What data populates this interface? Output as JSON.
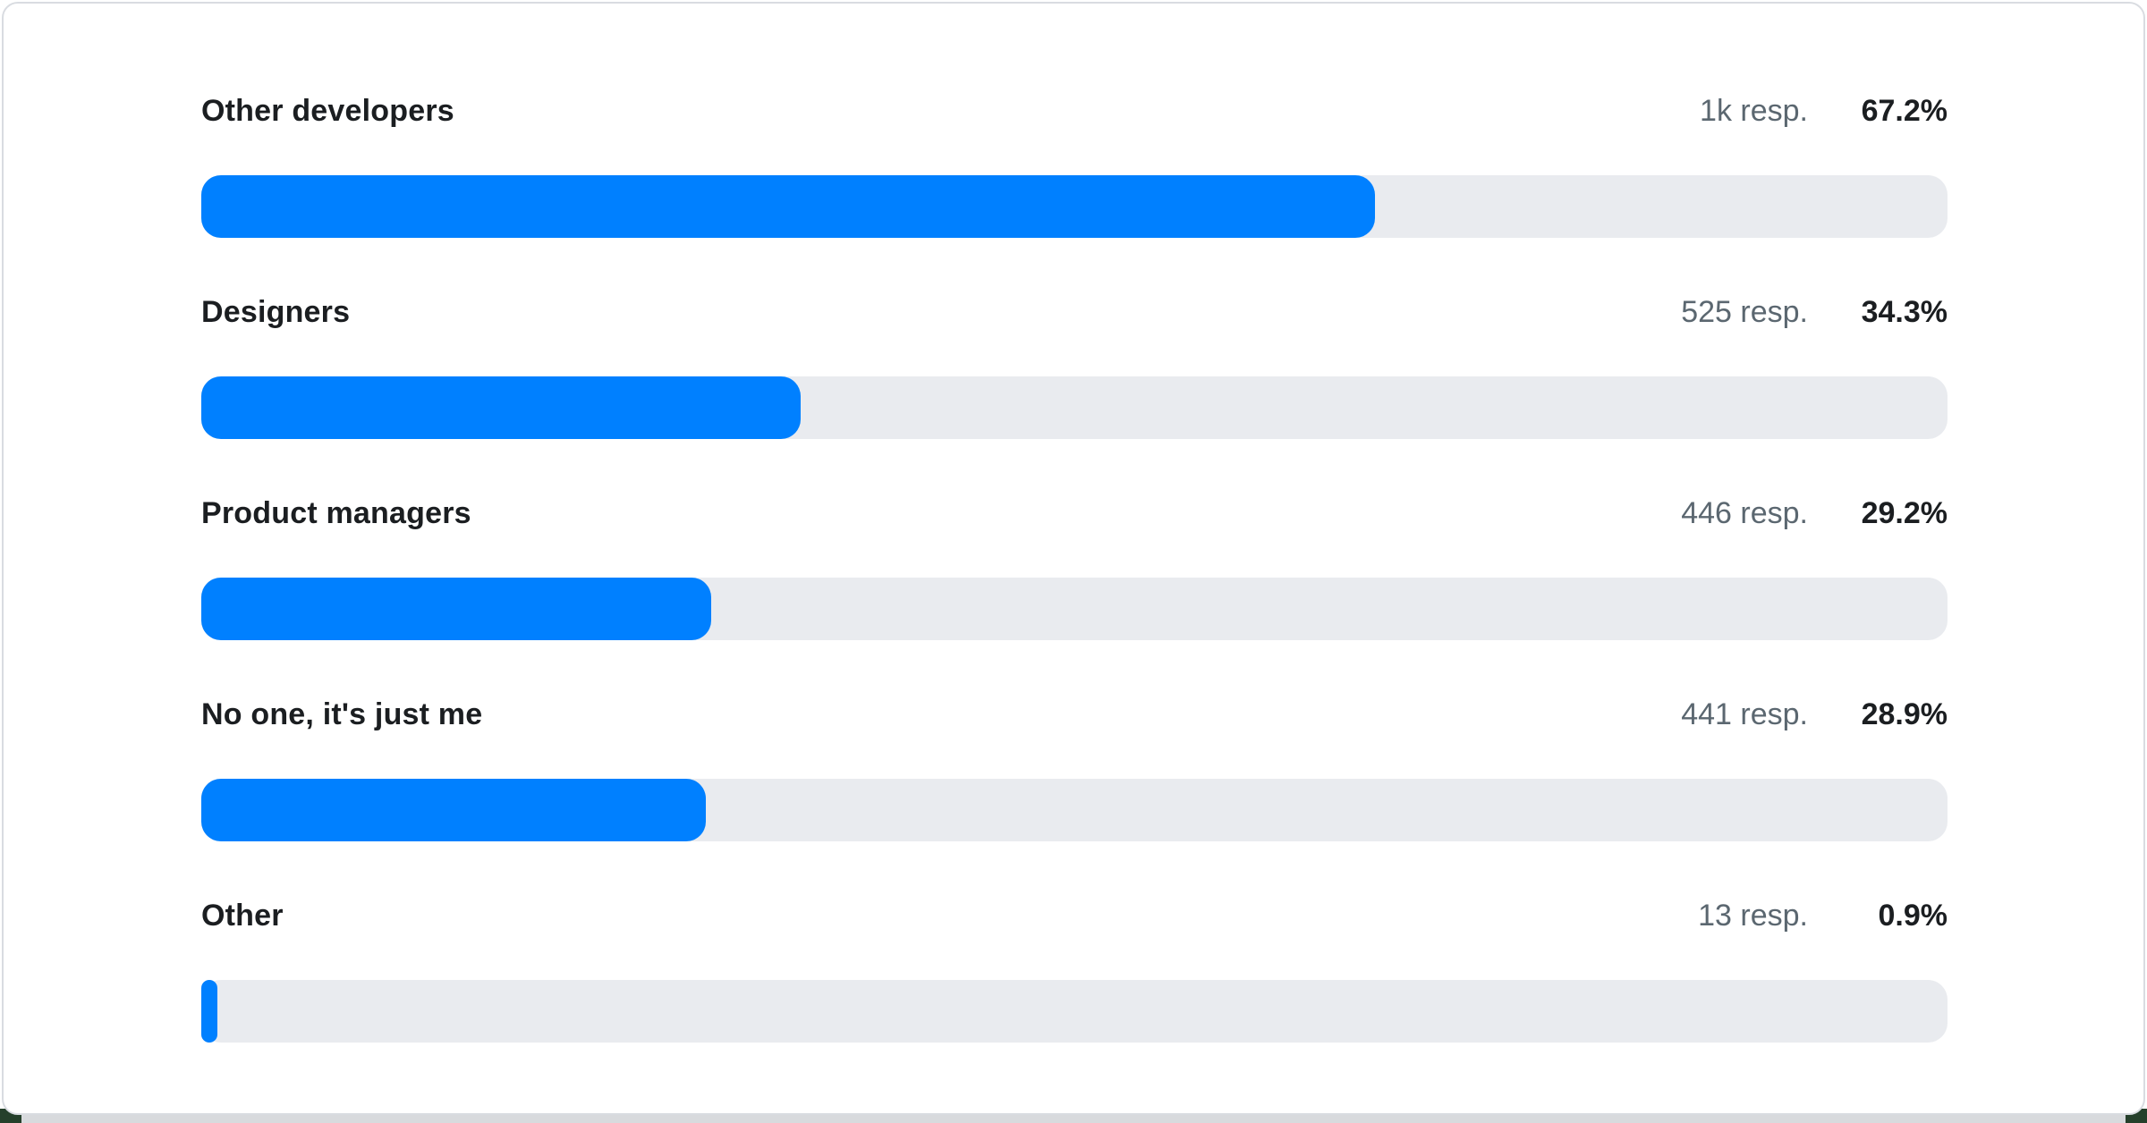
{
  "chart_data": {
    "type": "bar",
    "orientation": "horizontal",
    "title": "",
    "xlabel": "",
    "ylabel": "",
    "xlim": [
      0,
      100
    ],
    "grid": false,
    "legend": "none",
    "categories": [
      "Other developers",
      "Designers",
      "Product managers",
      "No one, it's just me",
      "Other"
    ],
    "values": [
      67.2,
      34.3,
      29.2,
      28.9,
      0.9
    ],
    "rows": [
      {
        "label": "Other developers",
        "responses": "1k resp.",
        "percent": "67.2%",
        "value": 67.2
      },
      {
        "label": "Designers",
        "responses": "525 resp.",
        "percent": "34.3%",
        "value": 34.3
      },
      {
        "label": "Product managers",
        "responses": "446 resp.",
        "percent": "29.2%",
        "value": 29.2
      },
      {
        "label": "No one, it's just me",
        "responses": "441 resp.",
        "percent": "28.9%",
        "value": 28.9
      },
      {
        "label": "Other",
        "responses": "13 resp.",
        "percent": "0.9%",
        "value": 0.9
      }
    ]
  },
  "colors": {
    "bar_fill": "#0080ff",
    "bar_track": "#e9ebef",
    "label_text": "#1b1e21",
    "responses_text": "#5b6770",
    "percent_text": "#1b1e21",
    "card_background": "#ffffff",
    "card_border": "#d9dce1",
    "bottom_strip": "#d8dadd",
    "corner_background": "#25402b"
  }
}
